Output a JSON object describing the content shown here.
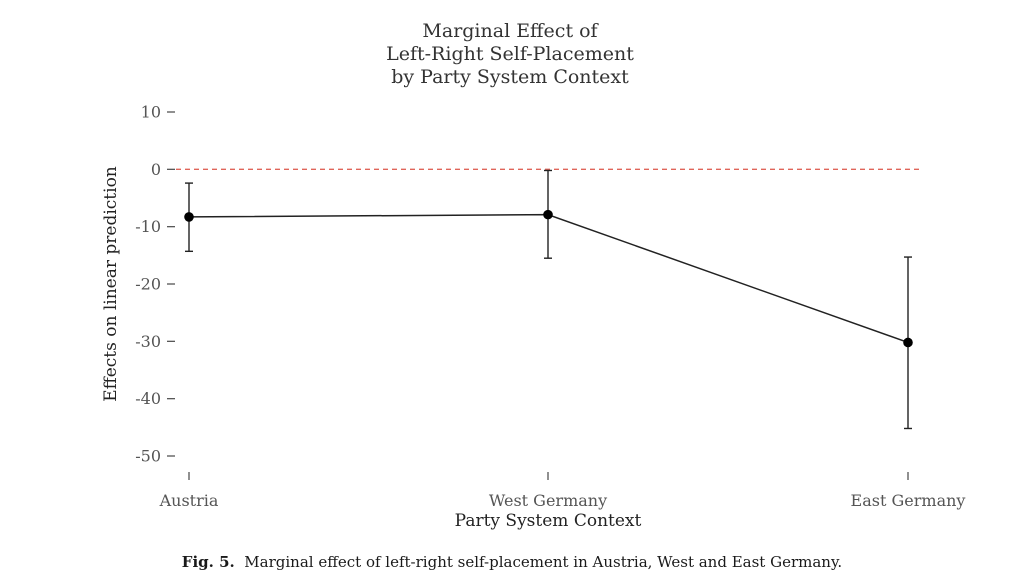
{
  "chart_data": {
    "type": "line",
    "title": [
      "Marginal Effect of",
      "Left-Right Self-Placement",
      "by Party System Context"
    ],
    "xlabel": "Party System Context",
    "ylabel": "Effects on linear prediction",
    "categories": [
      "Austria",
      "West Germany",
      "East Germany"
    ],
    "values": [
      -8.3,
      -7.9,
      -30.2
    ],
    "ci_lower": [
      -14.3,
      -15.5,
      -45.2
    ],
    "ci_upper": [
      -2.4,
      -0.2,
      -15.3
    ],
    "yticks": [
      10,
      0,
      -10,
      -20,
      -30,
      -40,
      -50
    ],
    "ytick_labels": [
      "10",
      "0",
      "-10",
      "-20",
      "-30",
      "-40",
      "-50"
    ],
    "ylim": [
      -50,
      10
    ],
    "reference_line": 0,
    "grid": false,
    "colors": {
      "line": "#222222",
      "reference": "#e0655a",
      "axis_text": "#555555"
    }
  },
  "caption": {
    "label": "Fig. 5.",
    "text": "Marginal effect of left-right self-placement in Austria, West and East Germany."
  }
}
